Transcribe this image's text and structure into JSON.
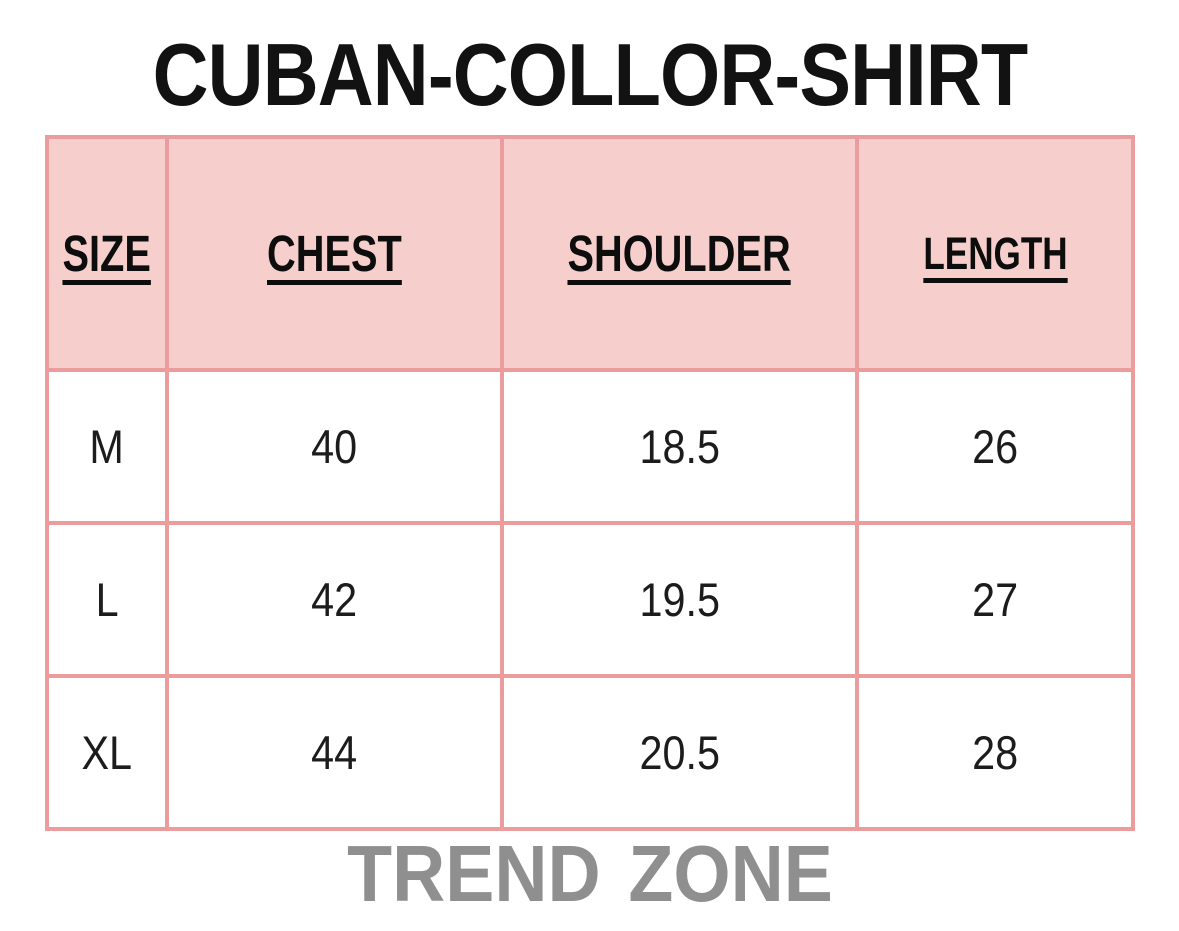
{
  "chart_data": {
    "type": "table",
    "title": "CUBAN-COLLOR-SHIRT",
    "columns": [
      "SIZE",
      "CHEST",
      "SHOULDER",
      "LENGTH"
    ],
    "rows": [
      [
        "M",
        "40",
        "18.5",
        "26"
      ],
      [
        "L",
        "42",
        "19.5",
        "27"
      ],
      [
        "XL",
        "44",
        "20.5",
        "28"
      ]
    ],
    "footer": "TREND ZONE",
    "layout": {
      "header_row_shaded": true,
      "grid": "on",
      "units": "inches (implied, not labeled)"
    }
  },
  "colors": {
    "header_bg": "#f6cfcd",
    "table_border": "#ea9d9c",
    "title_color": "#121212",
    "footer_color": "#8f8f8f",
    "cell_bg": "#ffffff",
    "cell_text": "#1c1c1c"
  }
}
